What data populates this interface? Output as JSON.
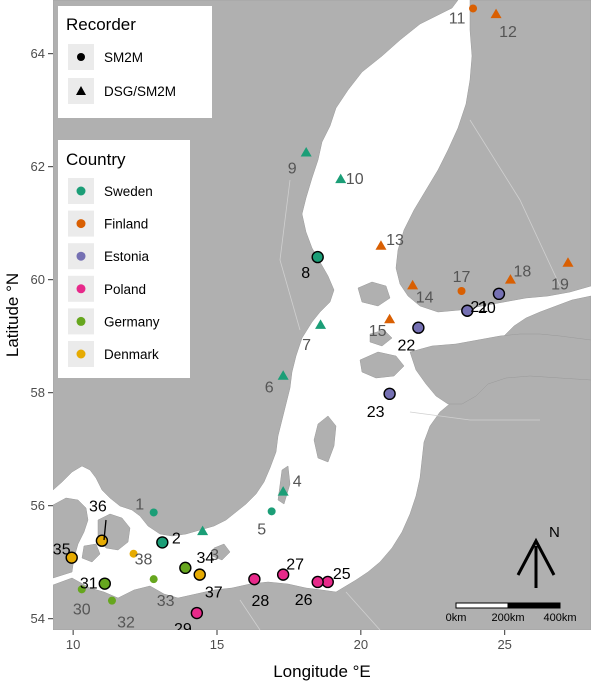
{
  "map": {
    "xlabel": "Longitude °E",
    "ylabel": "Latitude °N",
    "xlim": [
      9.3,
      28.0
    ],
    "ylim": [
      53.8,
      64.95
    ],
    "x_ticks": [
      {
        "value": 10,
        "label": "10"
      },
      {
        "value": 15,
        "label": "15"
      },
      {
        "value": 20,
        "label": "20"
      },
      {
        "value": 25,
        "label": "25"
      }
    ],
    "y_ticks": [
      {
        "value": 54,
        "label": "54"
      },
      {
        "value": 56,
        "label": "56"
      },
      {
        "value": 58,
        "label": "58"
      },
      {
        "value": 60,
        "label": "60"
      },
      {
        "value": 62,
        "label": "62"
      },
      {
        "value": 64,
        "label": "64"
      }
    ],
    "colors": {
      "land": "#b0b0b0",
      "sea": "#ffffff",
      "background": "#ffffff",
      "legend_key": "#ebebeb"
    }
  },
  "legend_recorder": {
    "title": "Recorder",
    "items": [
      {
        "label": "SM2M",
        "shape": "circle"
      },
      {
        "label": "DSG/SM2M",
        "shape": "triangle"
      }
    ]
  },
  "legend_country": {
    "title": "Country",
    "items": [
      {
        "label": "Sweden",
        "color": "#1b9e77"
      },
      {
        "label": "Finland",
        "color": "#d95f02"
      },
      {
        "label": "Estonia",
        "color": "#7570b3"
      },
      {
        "label": "Poland",
        "color": "#e7298a"
      },
      {
        "label": "Germany",
        "color": "#66a61e"
      },
      {
        "label": "Denmark",
        "color": "#e6ab02"
      }
    ]
  },
  "scale_bar": {
    "labels": [
      "0km",
      "200km",
      "400km"
    ]
  },
  "north_arrow": {
    "label": "N"
  },
  "chart_data": {
    "type": "scatter",
    "x_label": "Longitude °E",
    "y_label": "Latitude °N",
    "sites": [
      {
        "id": "1",
        "lon": 12.8,
        "lat": 55.88,
        "recorder": "SM2M",
        "country": "Sweden",
        "outlined": false
      },
      {
        "id": "2",
        "lon": 13.1,
        "lat": 55.35,
        "recorder": "SM2M",
        "country": "Sweden",
        "outlined": true
      },
      {
        "id": "3",
        "lon": 14.5,
        "lat": 55.55,
        "recorder": "DSG/SM2M",
        "country": "Sweden",
        "outlined": false
      },
      {
        "id": "4",
        "lon": 17.3,
        "lat": 56.25,
        "recorder": "DSG/SM2M",
        "country": "Sweden",
        "outlined": false
      },
      {
        "id": "5",
        "lon": 16.9,
        "lat": 55.9,
        "recorder": "SM2M",
        "country": "Sweden",
        "outlined": false
      },
      {
        "id": "6",
        "lon": 17.3,
        "lat": 58.3,
        "recorder": "DSG/SM2M",
        "country": "Sweden",
        "outlined": false
      },
      {
        "id": "7",
        "lon": 18.6,
        "lat": 59.2,
        "recorder": "DSG/SM2M",
        "country": "Sweden",
        "outlined": false
      },
      {
        "id": "8",
        "lon": 18.5,
        "lat": 60.4,
        "recorder": "SM2M",
        "country": "Sweden",
        "outlined": true
      },
      {
        "id": "9",
        "lon": 18.1,
        "lat": 62.25,
        "recorder": "DSG/SM2M",
        "country": "Sweden",
        "outlined": false
      },
      {
        "id": "10",
        "lon": 19.3,
        "lat": 61.78,
        "recorder": "DSG/SM2M",
        "country": "Sweden",
        "outlined": false
      },
      {
        "id": "11",
        "lon": 23.9,
        "lat": 64.8,
        "recorder": "SM2M",
        "country": "Finland",
        "outlined": false
      },
      {
        "id": "12",
        "lon": 24.7,
        "lat": 64.7,
        "recorder": "DSG/SM2M",
        "country": "Finland",
        "outlined": false
      },
      {
        "id": "13",
        "lon": 20.7,
        "lat": 60.6,
        "recorder": "DSG/SM2M",
        "country": "Finland",
        "outlined": false
      },
      {
        "id": "14",
        "lon": 21.8,
        "lat": 59.9,
        "recorder": "DSG/SM2M",
        "country": "Finland",
        "outlined": false
      },
      {
        "id": "15",
        "lon": 21.0,
        "lat": 59.3,
        "recorder": "DSG/SM2M",
        "country": "Finland",
        "outlined": false
      },
      {
        "id": "17",
        "lon": 23.5,
        "lat": 59.8,
        "recorder": "SM2M",
        "country": "Finland",
        "outlined": false
      },
      {
        "id": "18",
        "lon": 25.2,
        "lat": 60.0,
        "recorder": "DSG/SM2M",
        "country": "Finland",
        "outlined": false
      },
      {
        "id": "19",
        "lon": 27.2,
        "lat": 60.3,
        "recorder": "DSG/SM2M",
        "country": "Finland",
        "outlined": false
      },
      {
        "id": "20",
        "lon": 24.8,
        "lat": 59.75,
        "recorder": "SM2M",
        "country": "Estonia",
        "outlined": true
      },
      {
        "id": "21",
        "lon": 23.7,
        "lat": 59.45,
        "recorder": "SM2M",
        "country": "Estonia",
        "outlined": true
      },
      {
        "id": "22",
        "lon": 22.0,
        "lat": 59.15,
        "recorder": "SM2M",
        "country": "Estonia",
        "outlined": true
      },
      {
        "id": "23",
        "lon": 21.0,
        "lat": 57.98,
        "recorder": "SM2M",
        "country": "Estonia",
        "outlined": true
      },
      {
        "id": "25",
        "lon": 18.85,
        "lat": 54.65,
        "recorder": "SM2M",
        "country": "Poland",
        "outlined": true
      },
      {
        "id": "26",
        "lon": 18.5,
        "lat": 54.65,
        "recorder": "SM2M",
        "country": "Poland",
        "outlined": true
      },
      {
        "id": "27",
        "lon": 17.3,
        "lat": 54.78,
        "recorder": "SM2M",
        "country": "Poland",
        "outlined": true
      },
      {
        "id": "28",
        "lon": 16.3,
        "lat": 54.7,
        "recorder": "SM2M",
        "country": "Poland",
        "outlined": true
      },
      {
        "id": "29",
        "lon": 14.3,
        "lat": 54.1,
        "recorder": "SM2M",
        "country": "Poland",
        "outlined": true
      },
      {
        "id": "30",
        "lon": 10.3,
        "lat": 54.52,
        "recorder": "SM2M",
        "country": "Germany",
        "outlined": false
      },
      {
        "id": "31",
        "lon": 11.1,
        "lat": 54.62,
        "recorder": "SM2M",
        "country": "Germany",
        "outlined": true
      },
      {
        "id": "32",
        "lon": 11.35,
        "lat": 54.32,
        "recorder": "SM2M",
        "country": "Germany",
        "outlined": false
      },
      {
        "id": "33",
        "lon": 12.8,
        "lat": 54.7,
        "recorder": "SM2M",
        "country": "Germany",
        "outlined": false
      },
      {
        "id": "34",
        "lon": 13.9,
        "lat": 54.9,
        "recorder": "SM2M",
        "country": "Germany",
        "outlined": true
      },
      {
        "id": "35",
        "lon": 9.95,
        "lat": 55.08,
        "recorder": "SM2M",
        "country": "Denmark",
        "outlined": true
      },
      {
        "id": "36",
        "lon": 11.0,
        "lat": 55.38,
        "recorder": "SM2M",
        "country": "Denmark",
        "outlined": true
      },
      {
        "id": "37",
        "lon": 14.4,
        "lat": 54.78,
        "recorder": "SM2M",
        "country": "Denmark",
        "outlined": true
      },
      {
        "id": "38",
        "lon": 12.1,
        "lat": 55.15,
        "recorder": "SM2M",
        "country": "Denmark",
        "outlined": false
      }
    ]
  }
}
